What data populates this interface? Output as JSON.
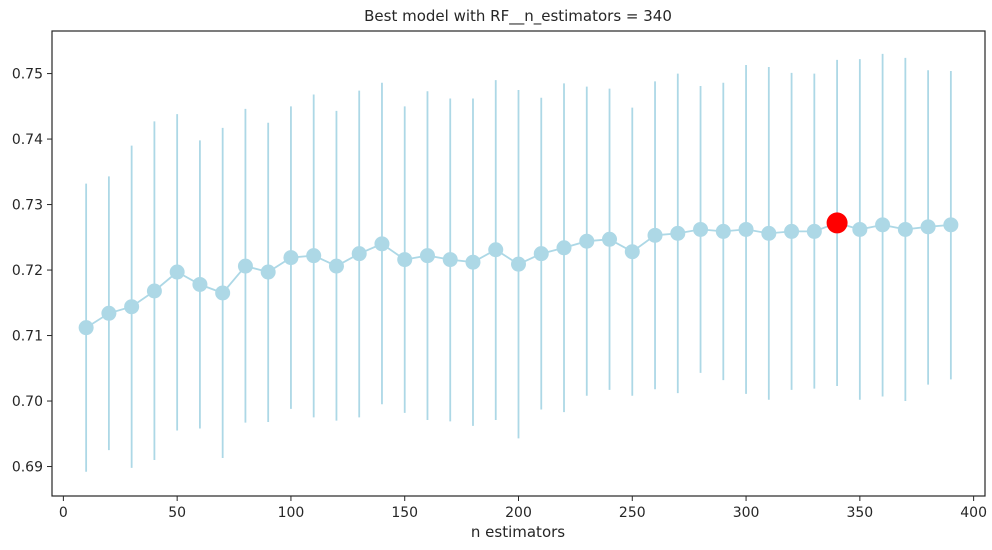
{
  "chart_data": {
    "type": "line",
    "title": "Best model with RF__n_estimators = 340",
    "xlabel": "n estimators",
    "ylabel": "",
    "xlim": [
      -5,
      405
    ],
    "ylim": [
      0.6855,
      0.7565
    ],
    "xticks": [
      0,
      50,
      100,
      150,
      200,
      250,
      300,
      350,
      400
    ],
    "yticks": [
      0.69,
      0.7,
      0.71,
      0.72,
      0.73,
      0.74,
      0.75
    ],
    "grid": false,
    "colors": {
      "series": "#add8e6",
      "best": "#ff0000",
      "axis": "#262626"
    },
    "series": [
      {
        "x": [
          10,
          20,
          30,
          40,
          50,
          60,
          70,
          80,
          90,
          100,
          110,
          120,
          130,
          140,
          150,
          160,
          170,
          180,
          190,
          200,
          210,
          220,
          230,
          240,
          250,
          260,
          270,
          280,
          290,
          300,
          310,
          320,
          330,
          340,
          350,
          360,
          370,
          380,
          390
        ],
        "mean": [
          0.7112,
          0.7134,
          0.7144,
          0.7168,
          0.7197,
          0.7178,
          0.7165,
          0.7206,
          0.7197,
          0.7219,
          0.7222,
          0.7206,
          0.7225,
          0.724,
          0.7216,
          0.7222,
          0.7216,
          0.7212,
          0.7231,
          0.7209,
          0.7225,
          0.7234,
          0.7244,
          0.7247,
          0.7228,
          0.7253,
          0.7256,
          0.7262,
          0.7259,
          0.7262,
          0.7256,
          0.7259,
          0.7259,
          0.7272,
          0.7262,
          0.7269,
          0.7262,
          0.7266,
          0.7269
        ],
        "lower": [
          0.6892,
          0.6925,
          0.6898,
          0.691,
          0.6955,
          0.6958,
          0.6913,
          0.6967,
          0.6968,
          0.6988,
          0.6975,
          0.697,
          0.6975,
          0.6995,
          0.6982,
          0.6971,
          0.6969,
          0.6962,
          0.6971,
          0.6943,
          0.6987,
          0.6983,
          0.7008,
          0.7017,
          0.7008,
          0.7018,
          0.7012,
          0.7043,
          0.7032,
          0.7011,
          0.7002,
          0.7017,
          0.7019,
          0.7023,
          0.7002,
          0.7007,
          0.7,
          0.7025,
          0.7033
        ],
        "upper": [
          0.7332,
          0.7343,
          0.739,
          0.7427,
          0.7438,
          0.7398,
          0.7417,
          0.7446,
          0.7425,
          0.745,
          0.7468,
          0.7443,
          0.7474,
          0.7486,
          0.745,
          0.7473,
          0.7462,
          0.7462,
          0.749,
          0.7475,
          0.7463,
          0.7485,
          0.748,
          0.7477,
          0.7448,
          0.7488,
          0.75,
          0.7481,
          0.7486,
          0.7513,
          0.751,
          0.7501,
          0.75,
          0.7521,
          0.7522,
          0.753,
          0.7524,
          0.7505,
          0.7504
        ]
      }
    ],
    "best": {
      "x": 340,
      "y": 0.7272
    }
  }
}
